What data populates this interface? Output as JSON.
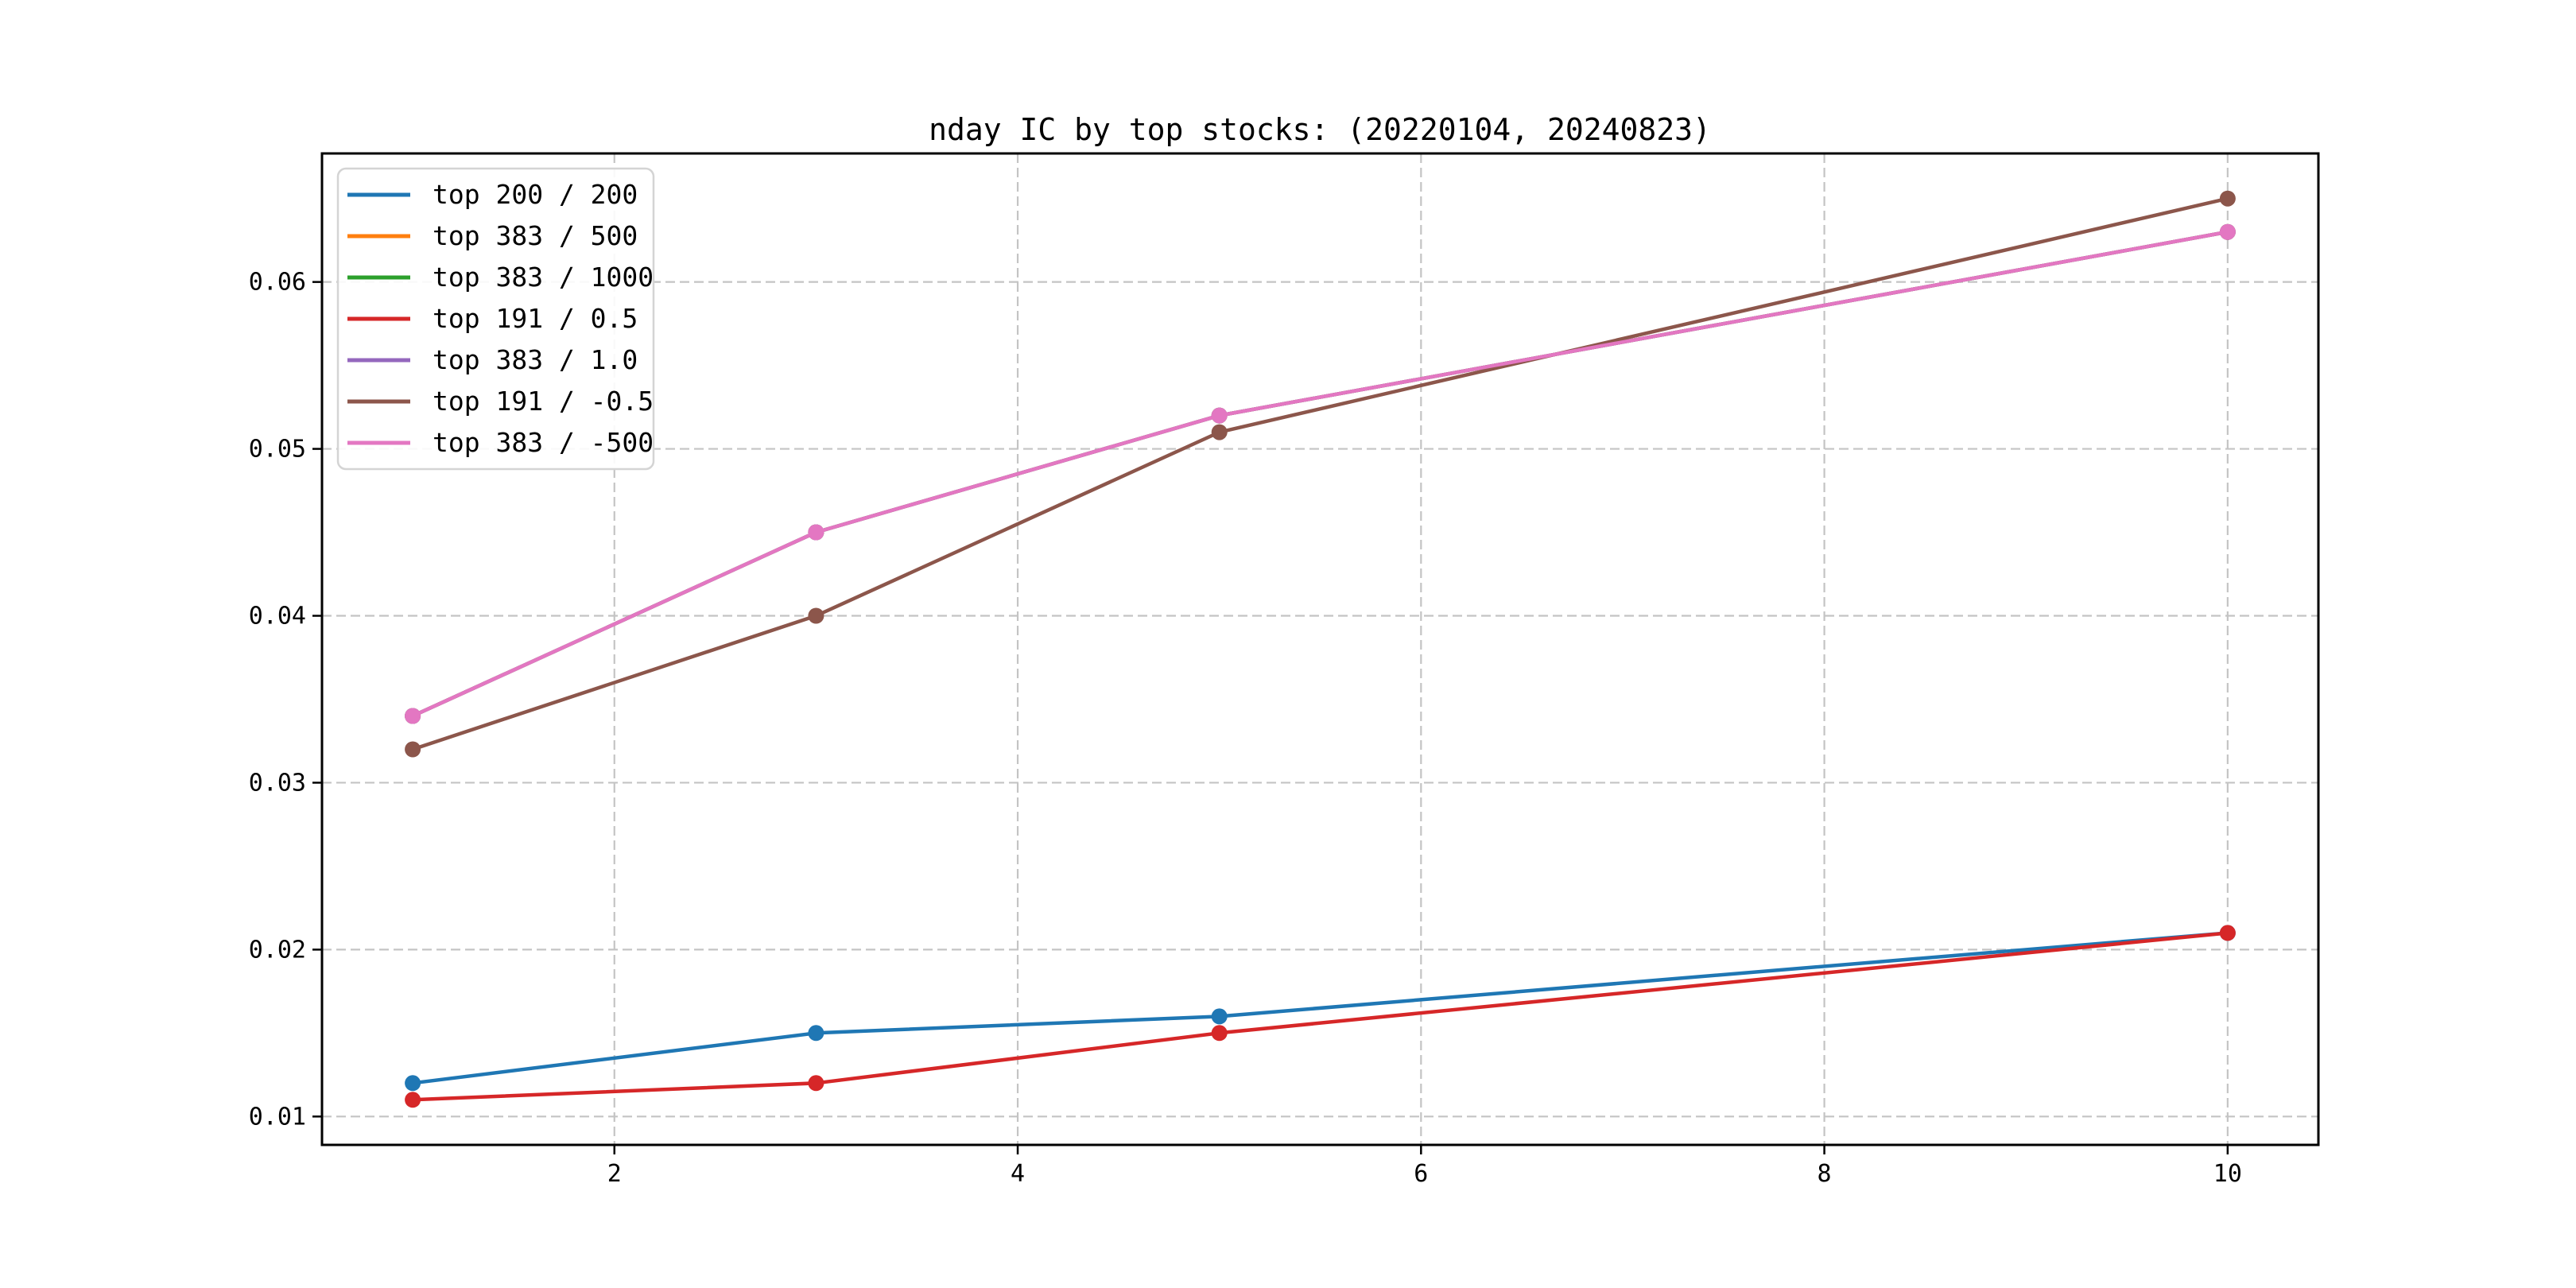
{
  "chart_data": {
    "type": "line",
    "title": "nday IC by top stocks: (20220104, 20240823)",
    "x": [
      1,
      3,
      5,
      10
    ],
    "series": [
      {
        "name": "top 200 / 200",
        "color": "#1f77b4",
        "values": [
          0.012,
          0.015,
          0.016,
          0.021
        ]
      },
      {
        "name": "top 383 / 500",
        "color": "#ff7f0e",
        "values": [
          0.034,
          0.045,
          0.052,
          0.063
        ],
        "occluded": true
      },
      {
        "name": "top 383 / 1000",
        "color": "#2ca02c",
        "values": [
          0.034,
          0.045,
          0.052,
          0.063
        ],
        "occluded": true
      },
      {
        "name": "top 191 / 0.5",
        "color": "#d62728",
        "values": [
          0.011,
          0.012,
          0.015,
          0.021
        ]
      },
      {
        "name": "top 383 / 1.0",
        "color": "#9467bd",
        "values": [
          0.034,
          0.045,
          0.052,
          0.063
        ],
        "occluded": true
      },
      {
        "name": "top 191 / -0.5",
        "color": "#8c564b",
        "values": [
          0.032,
          0.04,
          0.051,
          0.065
        ]
      },
      {
        "name": "top 383 / -500",
        "color": "#e377c2",
        "values": [
          0.034,
          0.045,
          0.052,
          0.063
        ]
      }
    ],
    "xticks": [
      2,
      4,
      6,
      8,
      10
    ],
    "xtick_labels": [
      "2",
      "4",
      "6",
      "8",
      "10"
    ],
    "yticks": [
      0.01,
      0.02,
      0.03,
      0.04,
      0.05,
      0.06
    ],
    "ytick_labels": [
      "0.01",
      "0.02",
      "0.03",
      "0.04",
      "0.05",
      "0.06"
    ],
    "xlim": [
      0.55,
      10.45
    ],
    "ylim": [
      0.0083,
      0.0677
    ],
    "grid": true,
    "grid_style": "dashed",
    "legend_position": "upper left",
    "marker": "o",
    "colors": {
      "grid": "#c4c4c4",
      "spine": "#000000",
      "text": "#000000",
      "legend_border": "#d4d4d4",
      "legend_bg": "#ffffff"
    }
  }
}
